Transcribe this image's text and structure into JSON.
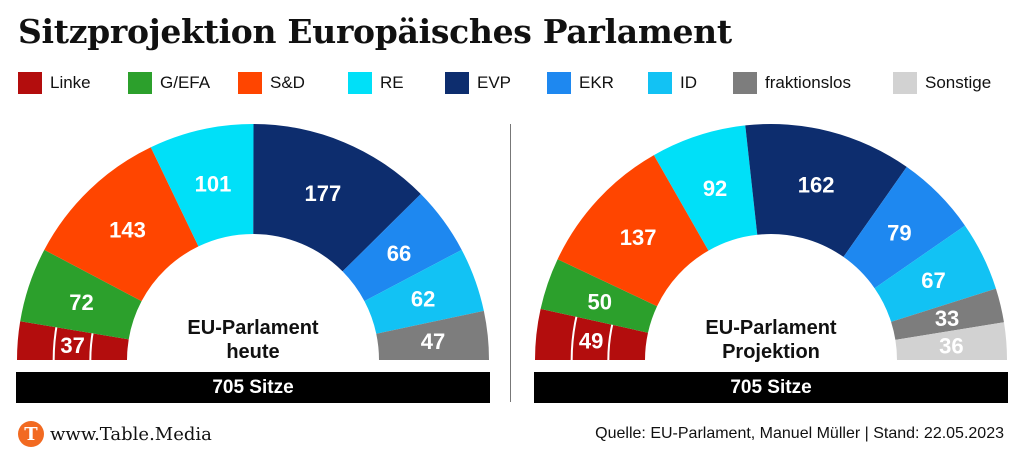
{
  "title": "Sitzprojektion Europäisches Parlament",
  "legend": [
    {
      "label": "Linke",
      "color": "#b30d0d"
    },
    {
      "label": "G/EFA",
      "color": "#2ca02c"
    },
    {
      "label": "S&D",
      "color": "#ff4500"
    },
    {
      "label": "RE",
      "color": "#00e0f8"
    },
    {
      "label": "EVP",
      "color": "#0d2d6e"
    },
    {
      "label": "EKR",
      "color": "#1e88f0"
    },
    {
      "label": "ID",
      "color": "#12c2f4"
    },
    {
      "label": "fraktionslos",
      "color": "#7d7d7d"
    },
    {
      "label": "Sonstige",
      "color": "#d2d2d2"
    }
  ],
  "chart_data": [
    {
      "type": "pie",
      "subtype": "parliament-hemicycle",
      "center_label": [
        "EU-Parlament",
        "heute"
      ],
      "total_label": "705 Sitze",
      "total": 705,
      "series": [
        {
          "name": "Linke",
          "value": 37
        },
        {
          "name": "G/EFA",
          "value": 72
        },
        {
          "name": "S&D",
          "value": 143
        },
        {
          "name": "RE",
          "value": 101
        },
        {
          "name": "EVP",
          "value": 177
        },
        {
          "name": "EKR",
          "value": 66
        },
        {
          "name": "ID",
          "value": 62
        },
        {
          "name": "fraktionslos",
          "value": 47
        }
      ]
    },
    {
      "type": "pie",
      "subtype": "parliament-hemicycle",
      "center_label": [
        "EU-Parlament",
        "Projektion"
      ],
      "total_label": "705 Sitze",
      "total": 705,
      "series": [
        {
          "name": "Linke",
          "value": 49
        },
        {
          "name": "G/EFA",
          "value": 50
        },
        {
          "name": "S&D",
          "value": 137
        },
        {
          "name": "RE",
          "value": 92
        },
        {
          "name": "EVP",
          "value": 162
        },
        {
          "name": "EKR",
          "value": 79
        },
        {
          "name": "ID",
          "value": 67
        },
        {
          "name": "fraktionslos",
          "value": 33
        },
        {
          "name": "Sonstige",
          "value": 36
        }
      ]
    }
  ],
  "footer": {
    "brand_logo_letter": "T",
    "brand": "www.Table.Media",
    "source": "Quelle: EU-Parlament, Manuel Müller | Stand: 22.05.2023"
  }
}
